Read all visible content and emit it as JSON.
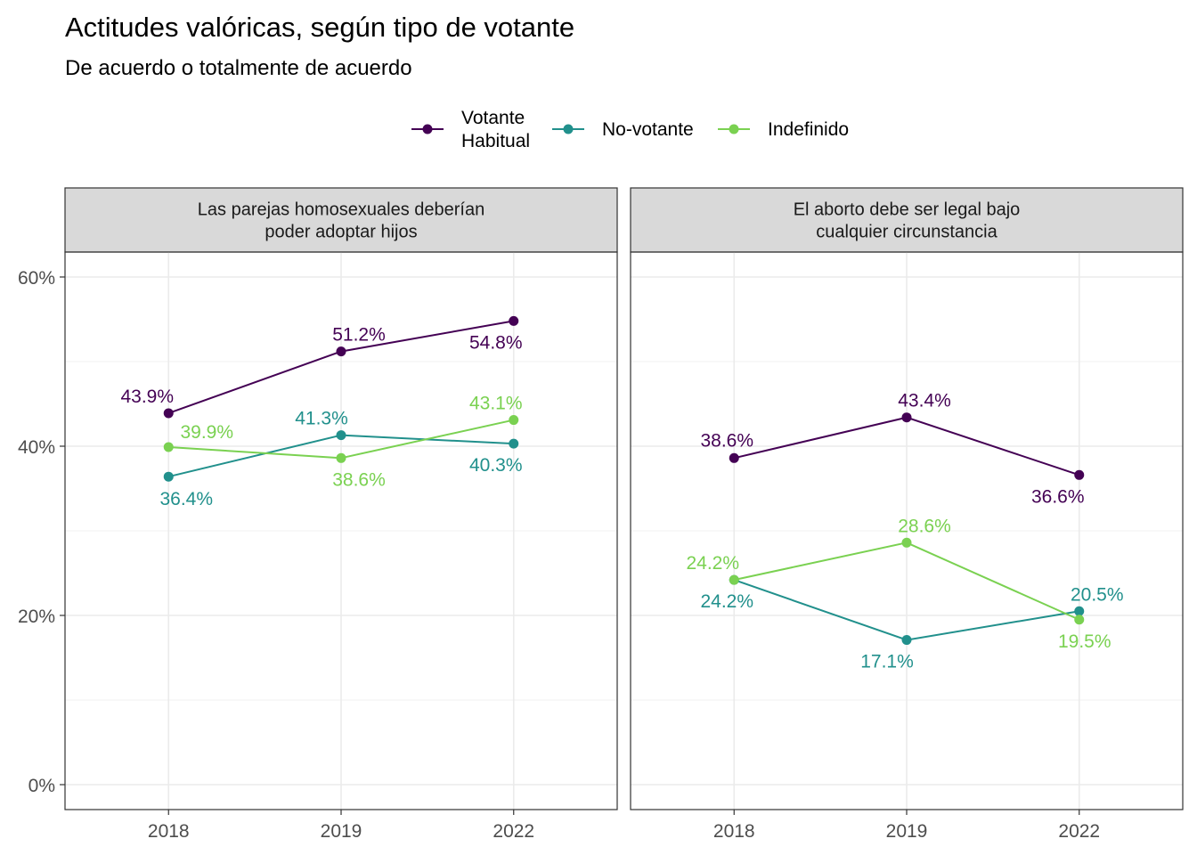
{
  "chart_data": {
    "type": "line",
    "title": "Actitudes valóricas, según tipo de votante",
    "subtitle": "De acuerdo o totalmente de acuerdo",
    "x": [
      "2018",
      "2019",
      "2022"
    ],
    "ylim": [
      0,
      60
    ],
    "yticks": [
      "0%",
      "20%",
      "40%",
      "60%"
    ],
    "grid": true,
    "legend_position": "top",
    "legend": [
      {
        "lines": [
          "Votante",
          "Habitual"
        ],
        "color": "#440154"
      },
      {
        "lines": [
          "No-votante"
        ],
        "color": "#21908C"
      },
      {
        "lines": [
          "Indefinido"
        ],
        "color": "#7AD151"
      }
    ],
    "panels": [
      {
        "strip": [
          "Las parejas homosexuales deberían",
          "poder adoptar hijos"
        ],
        "series": [
          {
            "color": "#440154",
            "values": [
              43.9,
              51.2,
              54.8
            ],
            "labels": [
              "43.9%",
              "51.2%",
              "54.8%"
            ]
          },
          {
            "color": "#21908C",
            "values": [
              36.4,
              41.3,
              40.3
            ],
            "labels": [
              "36.4%",
              "41.3%",
              "40.3%"
            ]
          },
          {
            "color": "#7AD151",
            "values": [
              39.9,
              38.6,
              43.1
            ],
            "labels": [
              "39.9%",
              "38.6%",
              "43.1%"
            ]
          }
        ]
      },
      {
        "strip": [
          "El aborto debe ser legal bajo",
          "cualquier circunstancia"
        ],
        "series": [
          {
            "color": "#440154",
            "values": [
              38.6,
              43.4,
              36.6
            ],
            "labels": [
              "38.6%",
              "43.4%",
              "36.6%"
            ]
          },
          {
            "color": "#21908C",
            "values": [
              24.2,
              17.1,
              20.5
            ],
            "labels": [
              "24.2%",
              "17.1%",
              "20.5%"
            ]
          },
          {
            "color": "#7AD151",
            "values": [
              24.2,
              28.6,
              19.5
            ],
            "labels": [
              "24.2%",
              "28.6%",
              "19.5%"
            ]
          }
        ]
      }
    ]
  }
}
